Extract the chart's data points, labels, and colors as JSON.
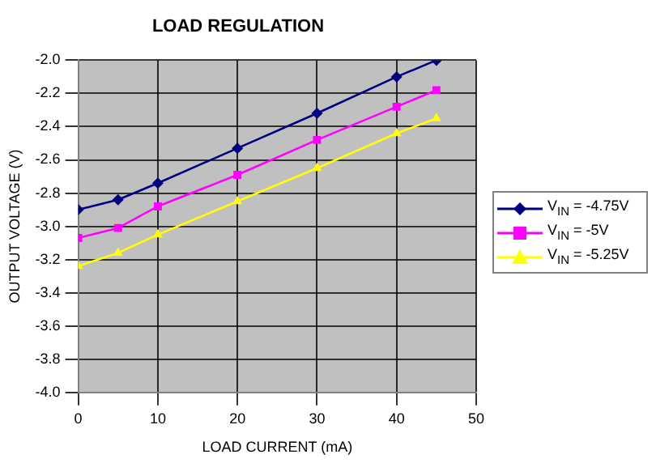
{
  "chart_data": {
    "type": "line",
    "title": "LOAD REGULATION",
    "xlabel": "LOAD CURRENT (mA)",
    "ylabel": "OUTPUT VOLTAGE (V)",
    "x": [
      0,
      5,
      10,
      20,
      30,
      40,
      45
    ],
    "series": [
      {
        "name": "V$_{IN}$ = -4.75V",
        "color": "#000080",
        "marker": "diamond",
        "values": [
          -2.9,
          -2.84,
          -2.74,
          -2.53,
          -2.32,
          -2.1,
          -2.0
        ]
      },
      {
        "name": "V$_{IN}$ = -5V",
        "color": "#ff00ff",
        "marker": "square",
        "values": [
          -3.07,
          -3.01,
          -2.88,
          -2.69,
          -2.48,
          -2.28,
          -2.18
        ]
      },
      {
        "name": "V$_{IN}$ = -5.25V",
        "color": "#ffff00",
        "marker": "triangle",
        "values": [
          -3.24,
          -3.16,
          -3.05,
          -2.85,
          -2.65,
          -2.44,
          -2.35
        ]
      }
    ],
    "xlim": [
      0,
      50
    ],
    "xticks": [
      0,
      10,
      20,
      30,
      40,
      50
    ],
    "ylim": [
      -4,
      -2
    ],
    "yticks": [
      {
        "value": -4,
        "label": "-4.0"
      },
      {
        "value": -3.8,
        "label": "-3.8"
      },
      {
        "value": -3.6,
        "label": "-3.6"
      },
      {
        "value": -3.4,
        "label": "-3.4"
      },
      {
        "value": -3.2,
        "label": "-3.2"
      },
      {
        "value": -3,
        "label": "-3.0"
      },
      {
        "value": -2.8,
        "label": "-2.8"
      },
      {
        "value": -2.6,
        "label": "-2.6"
      },
      {
        "value": -2.4,
        "label": "-2.4"
      },
      {
        "value": -2.2,
        "label": "-2.2"
      },
      {
        "value": -2,
        "label": "-2.0"
      }
    ],
    "grid": true,
    "legend": "right",
    "line_style": "solid"
  }
}
